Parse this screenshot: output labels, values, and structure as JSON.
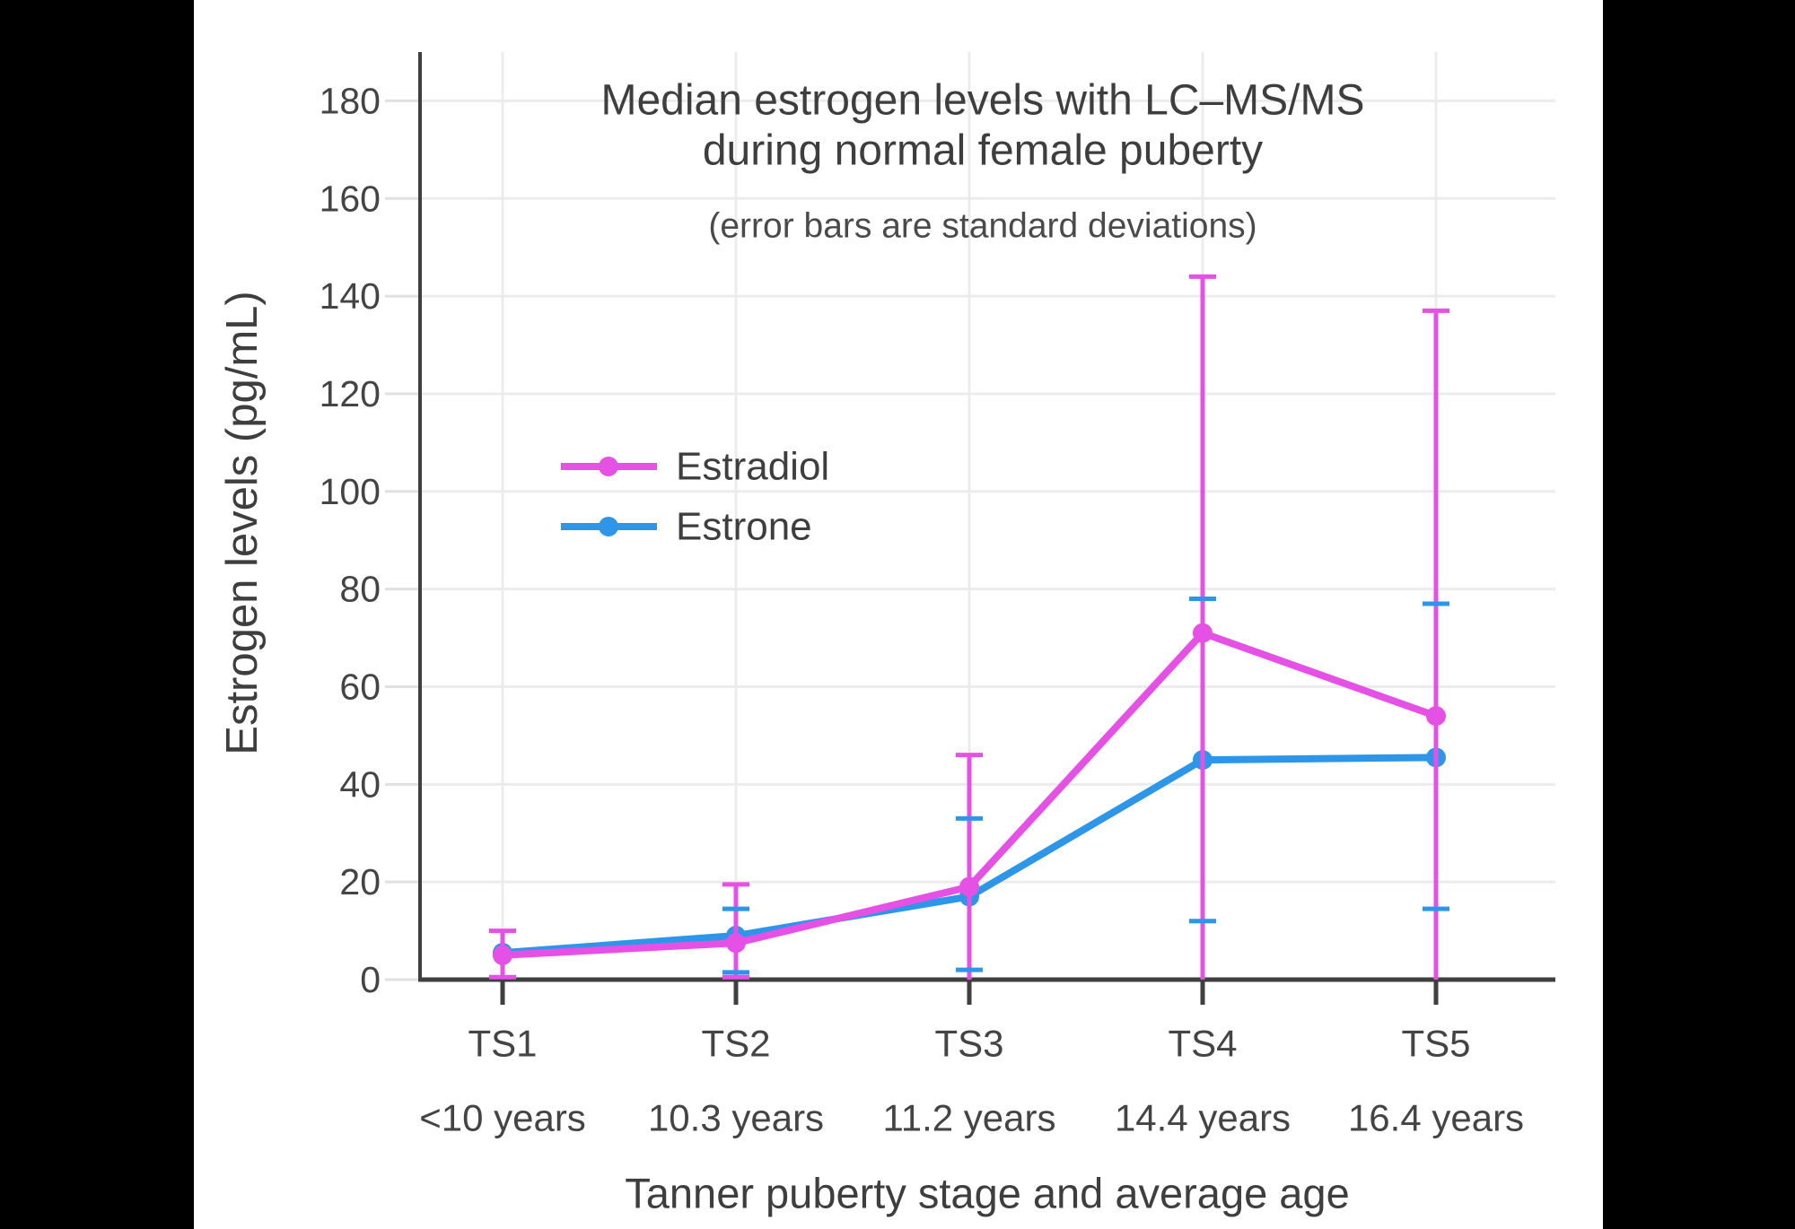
{
  "page": {
    "background": "#000000",
    "panel_background": "#ffffff"
  },
  "chart_data": {
    "type": "line",
    "title_lines": [
      "Median estrogen levels with LC–MS/MS",
      "during normal female puberty"
    ],
    "subtitle": "(error bars are standard deviations)",
    "xlabel": "Tanner puberty stage and average age",
    "ylabel": "Estrogen levels (pg/mL)",
    "categories": [
      {
        "stage": "TS1",
        "age": "<10 years"
      },
      {
        "stage": "TS2",
        "age": "10.3 years"
      },
      {
        "stage": "TS3",
        "age": "11.2 years"
      },
      {
        "stage": "TS4",
        "age": "14.4 years"
      },
      {
        "stage": "TS5",
        "age": "16.4 years"
      }
    ],
    "yticks": [
      0,
      20,
      40,
      60,
      80,
      100,
      120,
      140,
      160,
      180
    ],
    "ylim": [
      0,
      190
    ],
    "grid": true,
    "legend_position": "inside-left-middle",
    "series": [
      {
        "name": "Estradiol",
        "color": "#E551E5",
        "values": [
          5,
          7.5,
          19,
          71,
          54
        ],
        "error_upper": [
          10,
          19.5,
          46,
          144,
          137
        ],
        "error_lower": [
          0.5,
          0.5,
          null,
          null,
          null
        ]
      },
      {
        "name": "Estrone",
        "color": "#2D96E8",
        "values": [
          5.5,
          9,
          17,
          45,
          45.5
        ],
        "error_upper": [
          null,
          14.5,
          33,
          78,
          77
        ],
        "error_lower": [
          null,
          1.5,
          2,
          12,
          14.5
        ]
      }
    ],
    "colors": {
      "grid": "#ECECEC",
      "y_tick": "#E0E0E0",
      "axis": "#3F3F3F",
      "text": "#444444",
      "title_text": "#3E3E3E"
    }
  }
}
